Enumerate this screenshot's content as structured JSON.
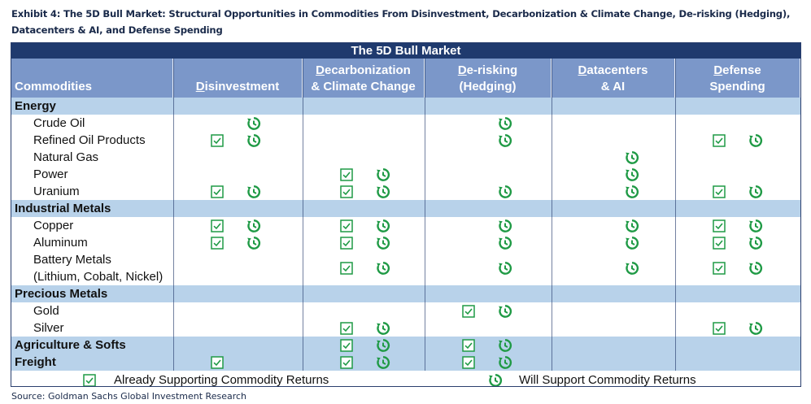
{
  "exhibit_title": "Exhibit 4: The 5D Bull Market: Structural Opportunities in Commodities From Disinvestment, Decarbonization & Climate Change, De-risking (Hedging), Datacenters & AI, and Defense Spending",
  "banner": "The 5D Bull Market",
  "columns": [
    {
      "first": "",
      "rest": "Commodities"
    },
    {
      "first": "D",
      "rest": "isinvestment"
    },
    {
      "first": "D",
      "rest": "ecarbonization",
      "line2": "& Climate Change"
    },
    {
      "first": "D",
      "rest": "e-risking",
      "line2": "(Hedging)"
    },
    {
      "first": "D",
      "rest": "atacenters",
      "line2": "& AI"
    },
    {
      "first": "D",
      "rest": "efense",
      "line2": "Spending"
    }
  ],
  "rows": [
    {
      "label": "Energy",
      "category": true,
      "marks": []
    },
    {
      "label": "Crude Oil",
      "category": false,
      "marks": [
        [
          false,
          true
        ],
        [
          false,
          false
        ],
        [
          false,
          true
        ],
        [
          false,
          false
        ],
        [
          false,
          false
        ]
      ]
    },
    {
      "label": "Refined Oil Products",
      "category": false,
      "marks": [
        [
          true,
          true
        ],
        [
          false,
          false
        ],
        [
          false,
          true
        ],
        [
          false,
          false
        ],
        [
          true,
          true
        ]
      ]
    },
    {
      "label": "Natural Gas",
      "category": false,
      "marks": [
        [
          false,
          false
        ],
        [
          false,
          false
        ],
        [
          false,
          false
        ],
        [
          false,
          true
        ],
        [
          false,
          false
        ]
      ]
    },
    {
      "label": "Power",
      "category": false,
      "marks": [
        [
          false,
          false
        ],
        [
          true,
          true
        ],
        [
          false,
          false
        ],
        [
          false,
          true
        ],
        [
          false,
          false
        ]
      ]
    },
    {
      "label": "Uranium",
      "category": false,
      "marks": [
        [
          true,
          true
        ],
        [
          true,
          true
        ],
        [
          false,
          true
        ],
        [
          false,
          true
        ],
        [
          true,
          true
        ]
      ]
    },
    {
      "label": "Industrial Metals",
      "category": true,
      "marks": []
    },
    {
      "label": "Copper",
      "category": false,
      "marks": [
        [
          true,
          true
        ],
        [
          true,
          true
        ],
        [
          false,
          true
        ],
        [
          false,
          true
        ],
        [
          true,
          true
        ]
      ]
    },
    {
      "label": "Aluminum",
      "category": false,
      "marks": [
        [
          true,
          true
        ],
        [
          true,
          true
        ],
        [
          false,
          true
        ],
        [
          false,
          true
        ],
        [
          true,
          true
        ]
      ]
    },
    {
      "label": "Battery Metals",
      "label2": "(Lithium, Cobalt, Nickel)",
      "category": false,
      "tall": true,
      "marks": [
        [
          false,
          false
        ],
        [
          true,
          true
        ],
        [
          false,
          true
        ],
        [
          false,
          true
        ],
        [
          true,
          true
        ]
      ]
    },
    {
      "label": "Precious Metals",
      "category": true,
      "marks": []
    },
    {
      "label": "Gold",
      "category": false,
      "marks": [
        [
          false,
          false
        ],
        [
          false,
          false
        ],
        [
          true,
          true
        ],
        [
          false,
          false
        ],
        [
          false,
          false
        ]
      ]
    },
    {
      "label": "Silver",
      "category": false,
      "marks": [
        [
          false,
          false
        ],
        [
          true,
          true
        ],
        [
          false,
          false
        ],
        [
          false,
          false
        ],
        [
          true,
          true
        ]
      ]
    },
    {
      "label": "Agriculture & Softs",
      "category": true,
      "marks": [
        [
          false,
          false
        ],
        [
          true,
          true
        ],
        [
          true,
          true
        ],
        [
          false,
          false
        ],
        [
          false,
          false
        ]
      ]
    },
    {
      "label": "Freight",
      "category": true,
      "marks": [
        [
          true,
          false
        ],
        [
          true,
          true
        ],
        [
          true,
          true
        ],
        [
          false,
          false
        ],
        [
          false,
          false
        ]
      ]
    }
  ],
  "legend": {
    "check_label": "Already Supporting Commodity Returns",
    "clock_label": "Will Support Commodity Returns"
  },
  "source": "Source: Goldman Sachs Global Investment Research",
  "colors": {
    "banner": "#1f3a6e",
    "header": "#7b97c9",
    "category": "#b8d2ea",
    "icon": "#1f9a45"
  },
  "icons": {
    "check": "checkbox-check-icon",
    "clock": "clock-arrow-icon"
  }
}
